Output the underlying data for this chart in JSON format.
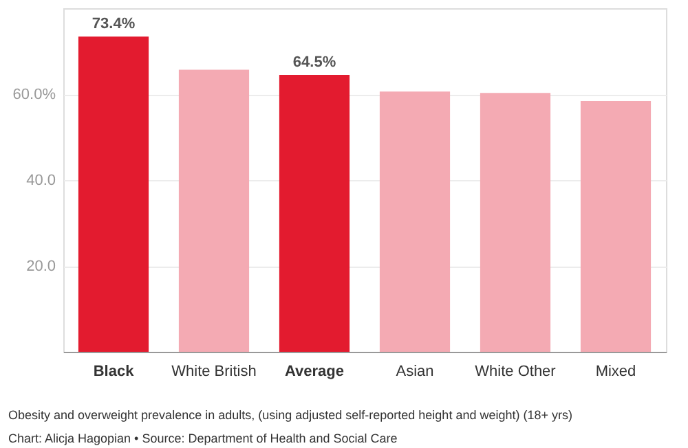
{
  "chart_data": {
    "type": "bar",
    "categories": [
      "Black",
      "White British",
      "Average",
      "Asian",
      "White Other",
      "Mixed"
    ],
    "values": [
      73.4,
      65.7,
      64.5,
      60.6,
      60.3,
      58.4
    ],
    "colors": [
      "#e31b2f",
      "#f4aab3",
      "#e31b2f",
      "#f4aab3",
      "#f4aab3",
      "#f4aab3"
    ],
    "value_labels": [
      "73.4%",
      null,
      "64.5%",
      null,
      null,
      null
    ],
    "ylim": [
      0,
      80
    ],
    "yticks": [
      {
        "value": 20,
        "label": "20.0"
      },
      {
        "value": 40,
        "label": "40.0"
      },
      {
        "value": 60,
        "label": "60.0%"
      }
    ],
    "grid": "y",
    "annotations": [
      "Obesity and overweight prevalence in adults, (using adjusted self-reported height and weight) (18+ yrs)",
      "Chart: Alicja Hagopian • Source: Department of Health and Social Care"
    ]
  }
}
